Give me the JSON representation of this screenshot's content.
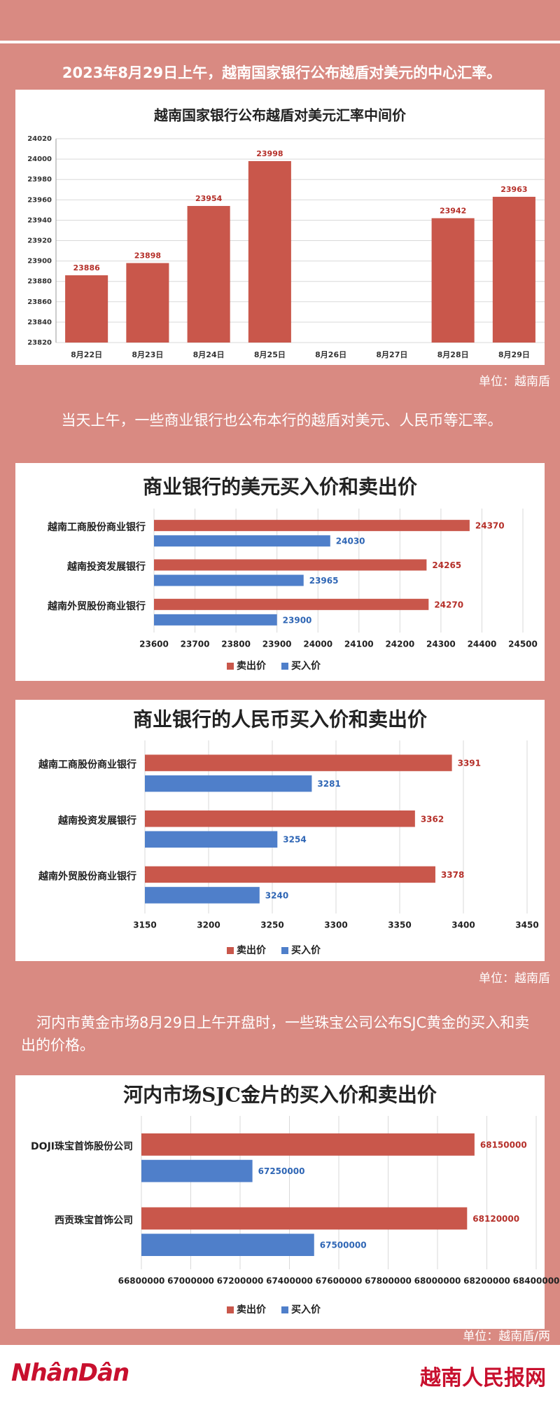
{
  "paragraphs": [
    "2023年8月29日上午，越南国家银行公布越盾对美元的中心汇率。",
    "当天上午，一些商业银行也公布本行的越盾对美元、人民币等汇率。",
    "河内市黄金市场8月29日上午开盘时，一些珠宝公司公布SJC黄金的买入和卖出的价格。"
  ],
  "units": [
    "单位：越南盾",
    "单位：越南盾",
    "单位：越南盾/两"
  ],
  "footer": {
    "logo": "NhânDân",
    "site": "越南人民报网"
  },
  "chart_data": [
    {
      "type": "bar",
      "title": "越南国家银行公布越盾对美元汇率中间价",
      "categories": [
        "8月22日",
        "8月23日",
        "8月24日",
        "8月25日",
        "8月26日",
        "8月27日",
        "8月28日",
        "8月29日"
      ],
      "values": [
        23886,
        23898,
        23954,
        23998,
        null,
        null,
        23942,
        23963
      ],
      "color": "#c9574b",
      "ylim": [
        23820,
        24020
      ],
      "yticks": [
        23820,
        23840,
        23860,
        23880,
        23900,
        23920,
        23940,
        23960,
        23980,
        24000,
        24020
      ],
      "grid": true
    },
    {
      "type": "hbar",
      "title": "商业银行的美元买入价和卖出价",
      "categories": [
        "越南工商股份商业银行",
        "越南投资发展银行",
        "越南外贸股份商业银行"
      ],
      "series": [
        {
          "name": "卖出价",
          "color": "#c9574b",
          "values": [
            24370,
            24265,
            24270
          ]
        },
        {
          "name": "买入价",
          "color": "#4f7fca",
          "values": [
            24030,
            23965,
            23900
          ]
        }
      ],
      "xlim": [
        23600,
        24500
      ],
      "xticks": [
        23600,
        23700,
        23800,
        23900,
        24000,
        24100,
        24200,
        24300,
        24400,
        24500
      ],
      "grid": true,
      "legend": "bottom"
    },
    {
      "type": "hbar",
      "title": "商业银行的人民币买入价和卖出价",
      "categories": [
        "越南工商股份商业银行",
        "越南投资发展银行",
        "越南外贸股份商业银行"
      ],
      "series": [
        {
          "name": "卖出价",
          "color": "#c9574b",
          "values": [
            3391,
            3362,
            3378
          ]
        },
        {
          "name": "买入价",
          "color": "#4f7fca",
          "values": [
            3281,
            3254,
            3240
          ]
        }
      ],
      "xlim": [
        3150,
        3450
      ],
      "xticks": [
        3150,
        3200,
        3250,
        3300,
        3350,
        3400,
        3450
      ],
      "grid": true,
      "legend": "bottom"
    },
    {
      "type": "hbar",
      "title": "河内市场SJC金片的买入价和卖出价",
      "categories": [
        "DOJI珠宝首饰股份公司",
        "西贡珠宝首饰公司"
      ],
      "series": [
        {
          "name": "卖出价",
          "color": "#c9574b",
          "values": [
            68150000,
            68120000
          ]
        },
        {
          "name": "买入价",
          "color": "#4f7fca",
          "values": [
            67250000,
            67500000
          ]
        }
      ],
      "xlim": [
        66800000,
        68400000
      ],
      "xticks": [
        66800000,
        67000000,
        67200000,
        67400000,
        67600000,
        67800000,
        68000000,
        68200000,
        68400000
      ],
      "grid": true,
      "legend": "bottom"
    }
  ]
}
